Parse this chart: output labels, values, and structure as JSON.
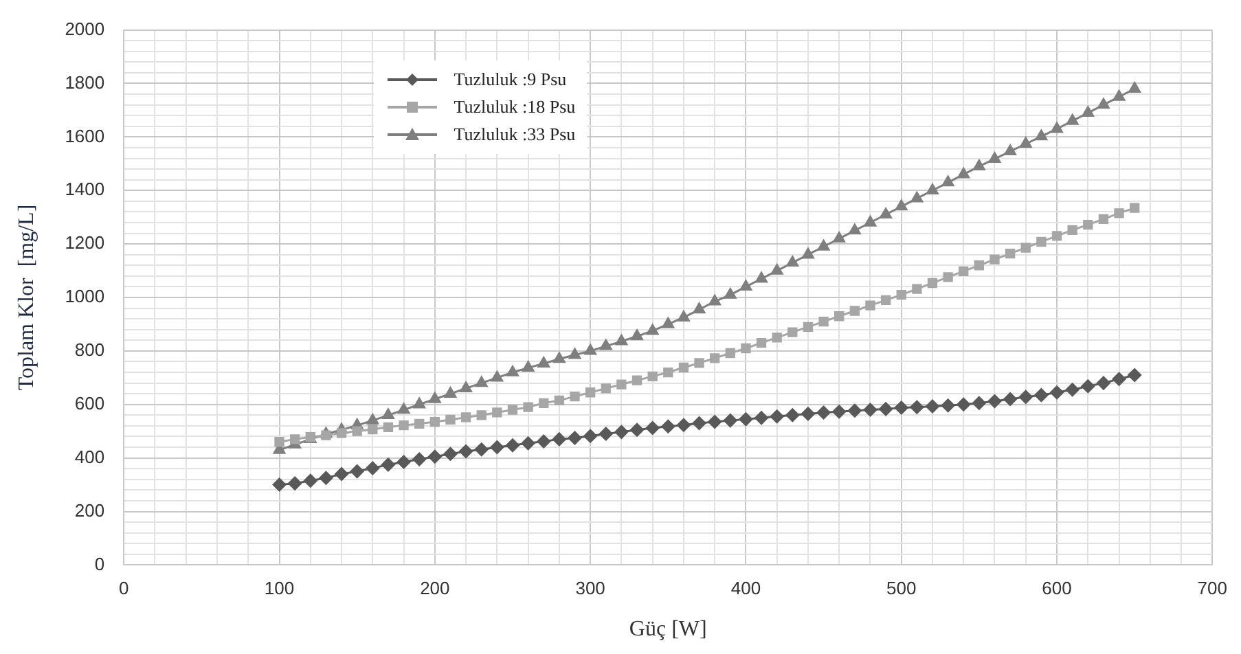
{
  "chart_data": {
    "type": "line",
    "xlabel": "Güç [W]",
    "ylabel": "Toplam Klor  [mg/L]",
    "x": [
      100,
      110,
      120,
      130,
      140,
      150,
      160,
      170,
      180,
      190,
      200,
      210,
      220,
      230,
      240,
      250,
      260,
      270,
      280,
      290,
      300,
      310,
      320,
      330,
      340,
      350,
      360,
      370,
      380,
      390,
      400,
      410,
      420,
      430,
      440,
      450,
      460,
      470,
      480,
      490,
      500,
      510,
      520,
      530,
      540,
      550,
      560,
      570,
      580,
      590,
      600,
      610,
      620,
      630,
      640,
      650
    ],
    "series": [
      {
        "name": "Tuzluluk :9 Psu",
        "color": "#595959",
        "marker": "diamond",
        "values": [
          300,
          305,
          315,
          325,
          340,
          350,
          362,
          375,
          385,
          395,
          405,
          415,
          425,
          432,
          440,
          447,
          455,
          462,
          470,
          475,
          482,
          490,
          497,
          505,
          512,
          518,
          523,
          530,
          535,
          540,
          545,
          550,
          555,
          560,
          565,
          570,
          573,
          577,
          580,
          583,
          588,
          590,
          593,
          596,
          600,
          605,
          612,
          620,
          628,
          635,
          645,
          655,
          668,
          680,
          695,
          710
        ]
      },
      {
        "name": "Tuzluluk :18 Psu",
        "color": "#a6a6a6",
        "marker": "square",
        "values": [
          460,
          470,
          478,
          485,
          493,
          500,
          507,
          515,
          522,
          528,
          535,
          543,
          552,
          560,
          570,
          580,
          590,
          605,
          615,
          630,
          645,
          660,
          675,
          690,
          705,
          720,
          738,
          755,
          773,
          792,
          810,
          830,
          850,
          870,
          890,
          910,
          930,
          950,
          970,
          990,
          1010,
          1032,
          1054,
          1076,
          1098,
          1120,
          1142,
          1164,
          1186,
          1208,
          1230,
          1252,
          1272,
          1293,
          1315,
          1335
        ]
      },
      {
        "name": "Tuzluluk :33 Psu",
        "color": "#7f7f7f",
        "marker": "triangle",
        "values": [
          430,
          450,
          470,
          490,
          505,
          522,
          540,
          560,
          580,
          600,
          620,
          640,
          660,
          680,
          700,
          720,
          737,
          753,
          770,
          785,
          800,
          818,
          836,
          855,
          875,
          900,
          925,
          955,
          985,
          1010,
          1040,
          1070,
          1100,
          1130,
          1160,
          1190,
          1220,
          1250,
          1280,
          1310,
          1340,
          1370,
          1400,
          1430,
          1460,
          1490,
          1518,
          1546,
          1574,
          1602,
          1630,
          1660,
          1690,
          1720,
          1750,
          1780
        ]
      }
    ],
    "xlim": [
      0,
      700
    ],
    "xticks": [
      0,
      {
        "value": 20,
        "label": null
      },
      {
        "value": 40,
        "label": null
      },
      {
        "value": 60,
        "label": null
      },
      {
        "value": 80,
        "label": null
      },
      100,
      {
        "value": 120,
        "label": null
      },
      {
        "value": 140,
        "label": null
      },
      {
        "value": 160,
        "label": null
      },
      {
        "value": 180,
        "label": null
      },
      200,
      {
        "value": 220,
        "label": null
      },
      {
        "value": 240,
        "label": null
      },
      {
        "value": 260,
        "label": null
      },
      {
        "value": 280,
        "label": null
      },
      300,
      {
        "value": 320,
        "label": null
      },
      {
        "value": 340,
        "label": null
      },
      {
        "value": 360,
        "label": null
      },
      {
        "value": 380,
        "label": null
      },
      400,
      {
        "value": 420,
        "label": null
      },
      {
        "value": 440,
        "label": null
      },
      {
        "value": 460,
        "label": null
      },
      {
        "value": 480,
        "label": null
      },
      500,
      {
        "value": 520,
        "label": null
      },
      {
        "value": 540,
        "label": null
      },
      {
        "value": 560,
        "label": null
      },
      {
        "value": 580,
        "label": null
      },
      600,
      {
        "value": 620,
        "label": null
      },
      {
        "value": 640,
        "label": null
      },
      {
        "value": 660,
        "label": null
      },
      {
        "value": 680,
        "label": null
      },
      700
    ],
    "ylim": [
      0,
      2000
    ],
    "yticks": [
      0,
      {
        "value": 40,
        "label": null
      },
      {
        "value": 80,
        "label": null
      },
      {
        "value": 120,
        "label": null
      },
      {
        "value": 160,
        "label": null
      },
      200,
      {
        "value": 240,
        "label": null
      },
      {
        "value": 280,
        "label": null
      },
      {
        "value": 320,
        "label": null
      },
      {
        "value": 360,
        "label": null
      },
      400,
      {
        "value": 440,
        "label": null
      },
      {
        "value": 480,
        "label": null
      },
      {
        "value": 520,
        "label": null
      },
      {
        "value": 560,
        "label": null
      },
      600,
      {
        "value": 640,
        "label": null
      },
      {
        "value": 680,
        "label": null
      },
      {
        "value": 720,
        "label": null
      },
      {
        "value": 760,
        "label": null
      },
      800,
      {
        "value": 840,
        "label": null
      },
      {
        "value": 880,
        "label": null
      },
      {
        "value": 920,
        "label": null
      },
      {
        "value": 960,
        "label": null
      },
      1000,
      {
        "value": 1040,
        "label": null
      },
      {
        "value": 1080,
        "label": null
      },
      {
        "value": 1120,
        "label": null
      },
      {
        "value": 1160,
        "label": null
      },
      1200,
      {
        "value": 1240,
        "label": null
      },
      {
        "value": 1280,
        "label": null
      },
      {
        "value": 1320,
        "label": null
      },
      {
        "value": 1360,
        "label": null
      },
      1400,
      {
        "value": 1440,
        "label": null
      },
      {
        "value": 1480,
        "label": null
      },
      {
        "value": 1520,
        "label": null
      },
      {
        "value": 1560,
        "label": null
      },
      1600,
      {
        "value": 1640,
        "label": null
      },
      {
        "value": 1680,
        "label": null
      },
      {
        "value": 1720,
        "label": null
      },
      {
        "value": 1760,
        "label": null
      },
      1800,
      {
        "value": 1840,
        "label": null
      },
      {
        "value": 1880,
        "label": null
      },
      {
        "value": 1920,
        "label": null
      },
      {
        "value": 1960,
        "label": null
      },
      2000
    ],
    "grid": true,
    "legend": "top left",
    "line_style": "solid"
  }
}
